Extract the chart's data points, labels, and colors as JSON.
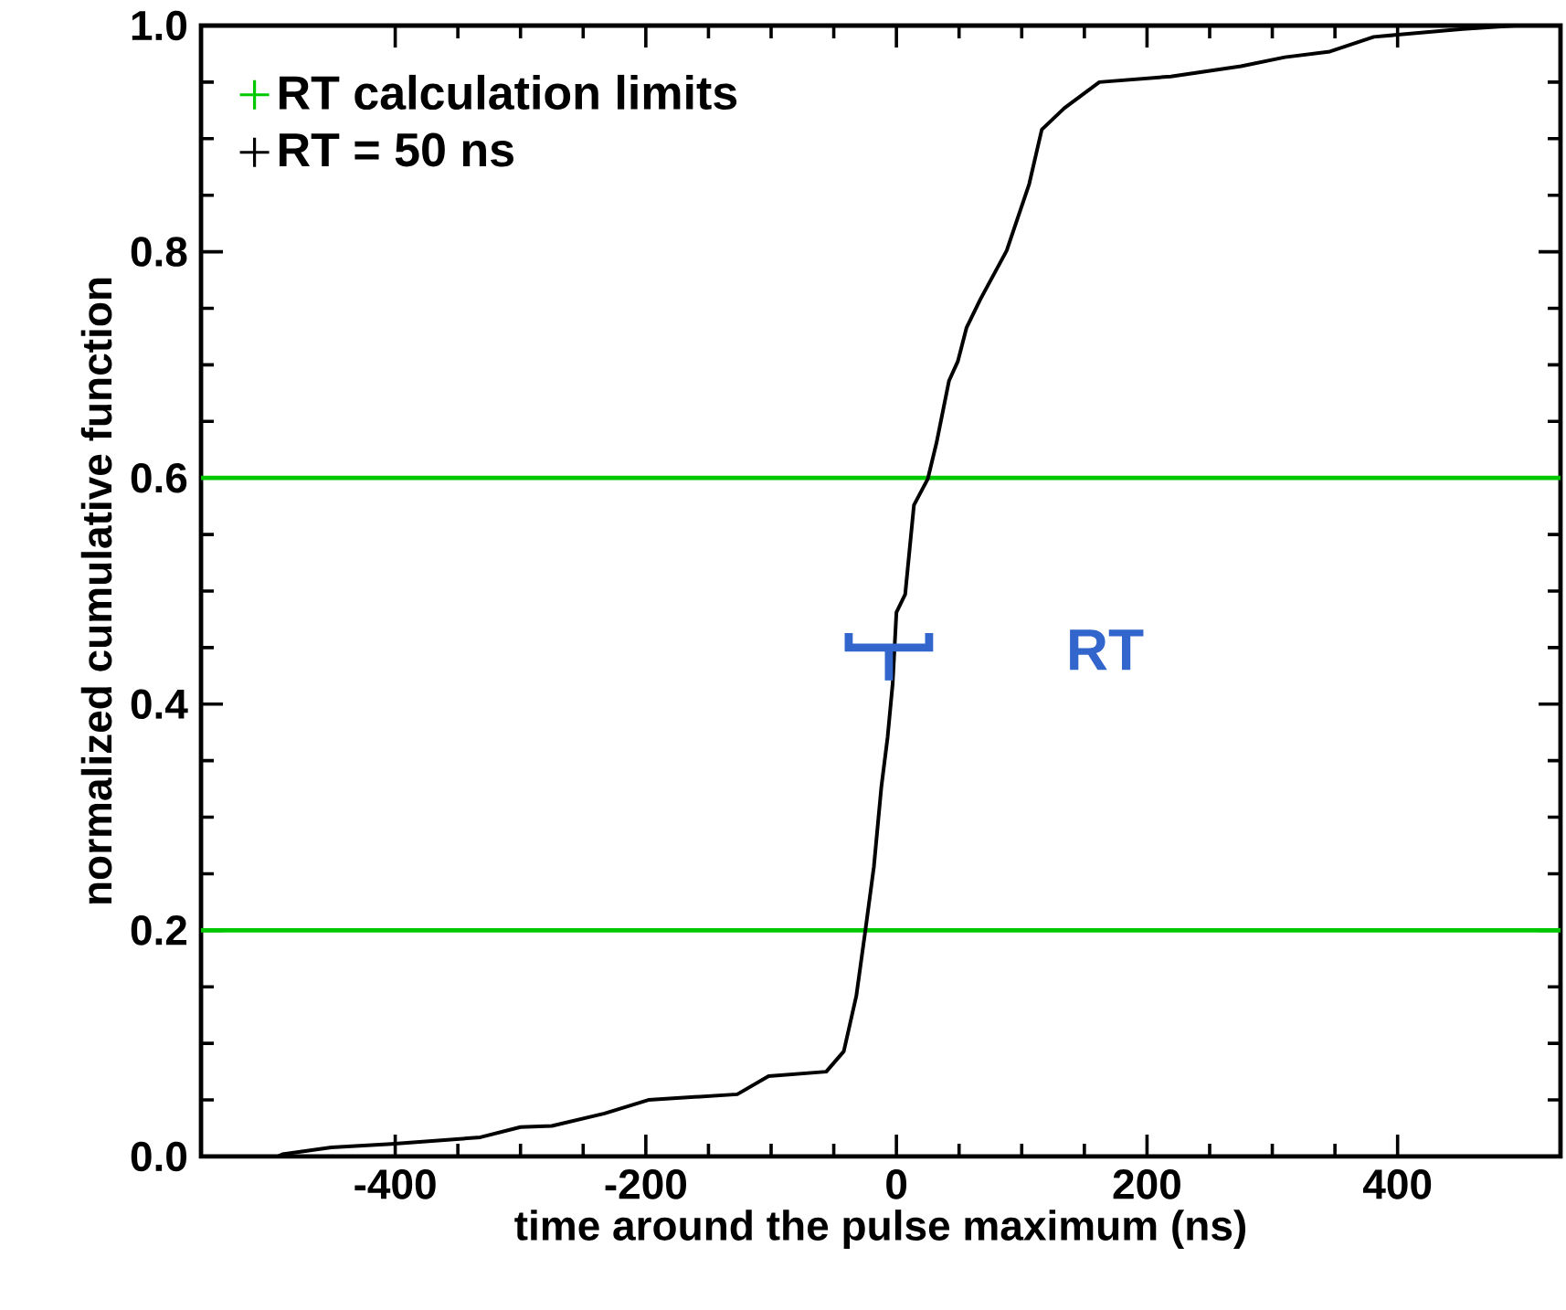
{
  "chart_data": {
    "type": "line",
    "xlabel": "time around the pulse maximum (ns)",
    "ylabel": "normalized cumulative function",
    "xlim": [
      -555,
      530
    ],
    "ylim": [
      0,
      1
    ],
    "xticks": [
      -400,
      -200,
      0,
      200,
      400
    ],
    "yticks": [
      {
        "value": 0,
        "label": "0.0"
      },
      0.2,
      0.4,
      0.6,
      0.8,
      {
        "value": 1,
        "label": "1.0"
      }
    ],
    "legend": "top left",
    "series": [
      {
        "name": "RT = 50 ns",
        "color": "#000000",
        "x": [
          -494,
          -490,
          -451,
          -403,
          -332,
          -300,
          -275,
          -233,
          -198,
          -127,
          -102,
          -56,
          -42,
          -32,
          -25,
          -18,
          -12,
          -7,
          -3,
          0,
          7,
          14,
          25,
          32,
          42,
          49,
          56,
          67,
          88,
          106,
          116,
          134,
          162,
          219,
          275,
          310,
          346,
          381,
          452,
          494,
          530
        ],
        "values": [
          0.0,
          0.002,
          0.008,
          0.011,
          0.017,
          0.026,
          0.027,
          0.038,
          0.05,
          0.055,
          0.071,
          0.075,
          0.093,
          0.142,
          0.198,
          0.256,
          0.327,
          0.371,
          0.418,
          0.481,
          0.497,
          0.576,
          0.599,
          0.631,
          0.686,
          0.703,
          0.733,
          0.758,
          0.801,
          0.86,
          0.908,
          0.927,
          0.95,
          0.955,
          0.964,
          0.972,
          0.977,
          0.99,
          0.997,
          1.0,
          1.0
        ]
      }
    ],
    "ref_lines": [
      {
        "axis": "y",
        "value": 0.6,
        "label": "RT calculation limits",
        "color": "#00c800"
      },
      {
        "axis": "y",
        "value": 0.2,
        "color": "#00c800"
      }
    ],
    "annotations": [
      "RT"
    ]
  }
}
